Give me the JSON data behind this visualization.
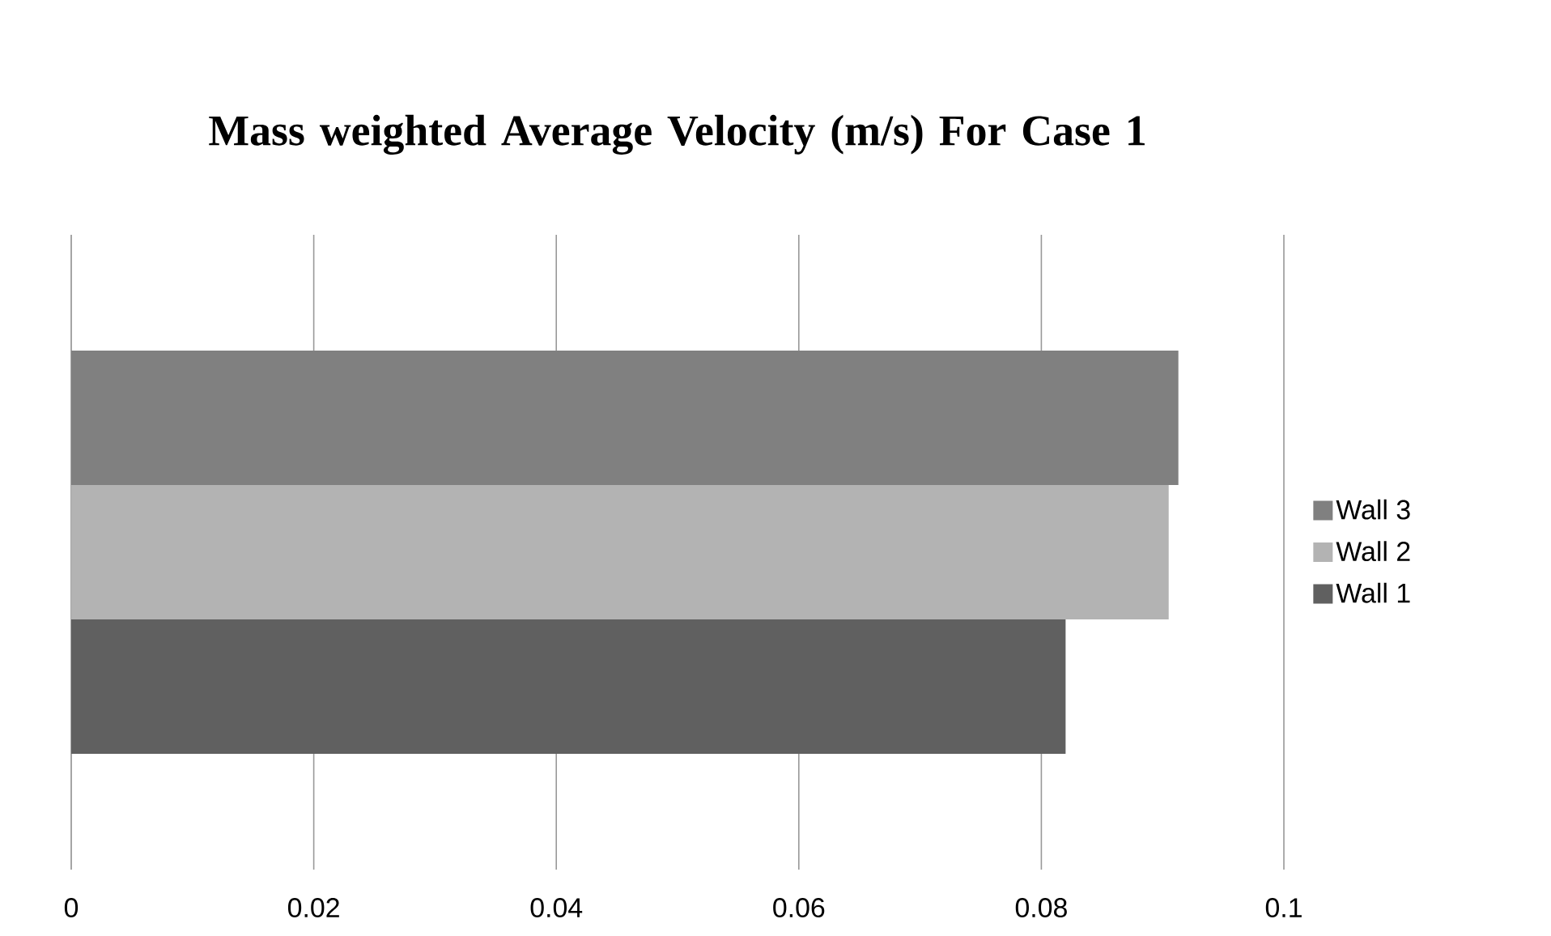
{
  "chart_data": {
    "type": "bar",
    "orientation": "horizontal",
    "title": "Mass weighted Average Velocity (m/s) For Case 1",
    "categories": [
      null
    ],
    "series": [
      {
        "name": "Wall 1",
        "color": "#606060",
        "values": [
          0.082
        ]
      },
      {
        "name": "Wall 2",
        "color": "#b3b3b3",
        "values": [
          0.0905
        ]
      },
      {
        "name": "Wall 3",
        "color": "#808080",
        "values": [
          0.0913
        ]
      }
    ],
    "xlim": [
      0,
      0.1
    ],
    "xticks": [
      0,
      0.02,
      0.04,
      0.06,
      0.08,
      0.1
    ],
    "grid": "x",
    "legend": "right"
  }
}
